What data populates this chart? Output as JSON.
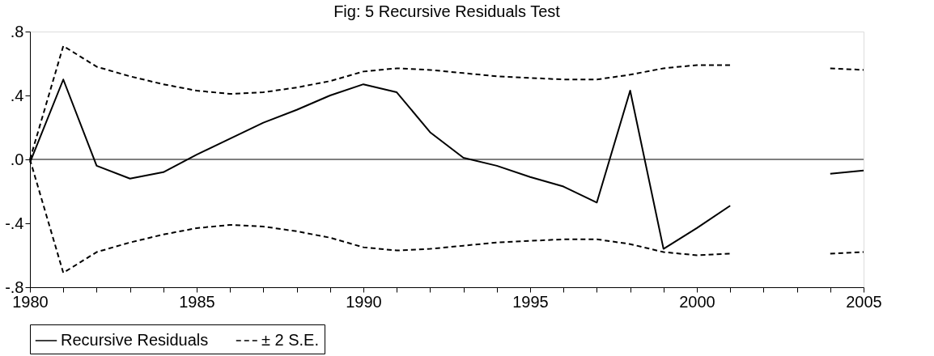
{
  "chart_data": {
    "type": "line",
    "title": "Fig: 5 Recursive Residuals Test",
    "x": [
      1980,
      1981,
      1982,
      1983,
      1984,
      1985,
      1986,
      1987,
      1988,
      1989,
      1990,
      1991,
      1992,
      1993,
      1994,
      1995,
      1996,
      1997,
      1998,
      1999,
      2000,
      2001,
      2002,
      2003,
      2004,
      2005
    ],
    "series": [
      {
        "name": "Recursive Residuals",
        "color": "#000000",
        "line_style": "solid",
        "values": [
          -0.02,
          0.5,
          -0.04,
          -0.12,
          -0.08,
          0.03,
          0.13,
          0.23,
          0.31,
          0.4,
          0.47,
          0.42,
          0.17,
          0.01,
          -0.04,
          -0.11,
          -0.17,
          -0.27,
          0.43,
          -0.56,
          -0.43,
          -0.29,
          null,
          null,
          -0.09,
          -0.07
        ]
      },
      {
        "name": "± 2 S.E.",
        "color": "#000000",
        "line_style": "dashed",
        "values": [
          0.0,
          0.71,
          0.58,
          0.52,
          0.47,
          0.43,
          0.41,
          0.42,
          0.45,
          0.49,
          0.55,
          0.57,
          0.56,
          0.54,
          0.52,
          0.51,
          0.5,
          0.5,
          0.53,
          0.57,
          0.59,
          0.59,
          null,
          null,
          0.57,
          0.56
        ]
      },
      {
        "color": "#000000",
        "line_style": "dashed",
        "values": [
          0.0,
          -0.71,
          -0.58,
          -0.52,
          -0.47,
          -0.43,
          -0.41,
          -0.42,
          -0.45,
          -0.49,
          -0.55,
          -0.57,
          -0.56,
          -0.54,
          -0.52,
          -0.51,
          -0.5,
          -0.5,
          -0.53,
          -0.58,
          -0.6,
          -0.59,
          null,
          null,
          -0.59,
          -0.58
        ]
      }
    ],
    "xlim": [
      1980,
      2005
    ],
    "xticks": [
      1980,
      {
        "value": 1981,
        "label": null
      },
      {
        "value": 1982,
        "label": null
      },
      {
        "value": 1983,
        "label": null
      },
      {
        "value": 1984,
        "label": null
      },
      1985,
      {
        "value": 1986,
        "label": null
      },
      {
        "value": 1987,
        "label": null
      },
      {
        "value": 1988,
        "label": null
      },
      {
        "value": 1989,
        "label": null
      },
      1990,
      {
        "value": 1991,
        "label": null
      },
      {
        "value": 1992,
        "label": null
      },
      {
        "value": 1993,
        "label": null
      },
      {
        "value": 1994,
        "label": null
      },
      1995,
      {
        "value": 1996,
        "label": null
      },
      {
        "value": 1997,
        "label": null
      },
      {
        "value": 1998,
        "label": null
      },
      {
        "value": 1999,
        "label": null
      },
      2000,
      {
        "value": 2001,
        "label": null
      },
      {
        "value": 2002,
        "label": null
      },
      {
        "value": 2003,
        "label": null
      },
      {
        "value": 2004,
        "label": null
      },
      2005
    ],
    "ylim": [
      -0.8,
      0.8
    ],
    "yticks": [
      {
        "value": -0.8,
        "label": "-.8"
      },
      {
        "value": -0.4,
        "label": "-.4"
      },
      {
        "value": 0,
        "label": ".0"
      },
      {
        "value": 0.4,
        "label": ".4"
      },
      {
        "value": 0.8,
        "label": ".8"
      }
    ],
    "ref_lines": [
      {
        "axis": "y",
        "value": 0,
        "color": "#000000",
        "line_style": "solid"
      }
    ],
    "grid": false,
    "legend": "bottom"
  }
}
